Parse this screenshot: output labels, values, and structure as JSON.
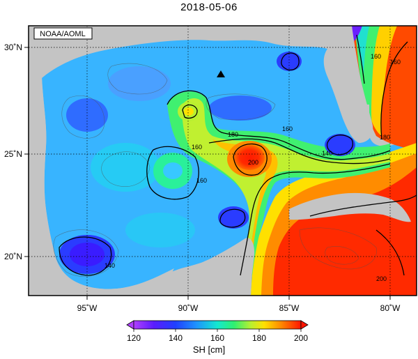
{
  "title": "2018-05-06",
  "source_label": "NOAA/AOML",
  "lon_ticks": [
    "95˚W",
    "90˚W",
    "85˚W",
    "80˚W"
  ],
  "lat_ticks": [
    "30˚N",
    "25˚N",
    "20˚N"
  ],
  "contour_labels": [
    "160",
    "180",
    "160",
    "140",
    "200",
    "160",
    "160",
    "140",
    "200",
    "160",
    "180"
  ],
  "colorbar": {
    "ticks": [
      "120",
      "140",
      "160",
      "180",
      "200"
    ],
    "label": "SH [cm]",
    "colors": [
      "#9b30ff",
      "#3a1cff",
      "#1e8cff",
      "#12e0d8",
      "#28f07a",
      "#aef032",
      "#ffe400",
      "#ff8a00",
      "#ff2a00",
      "#ff0a00"
    ]
  },
  "colors": {
    "land": "#c4c4c4",
    "frame": "#000000",
    "marker": "#000000"
  }
}
